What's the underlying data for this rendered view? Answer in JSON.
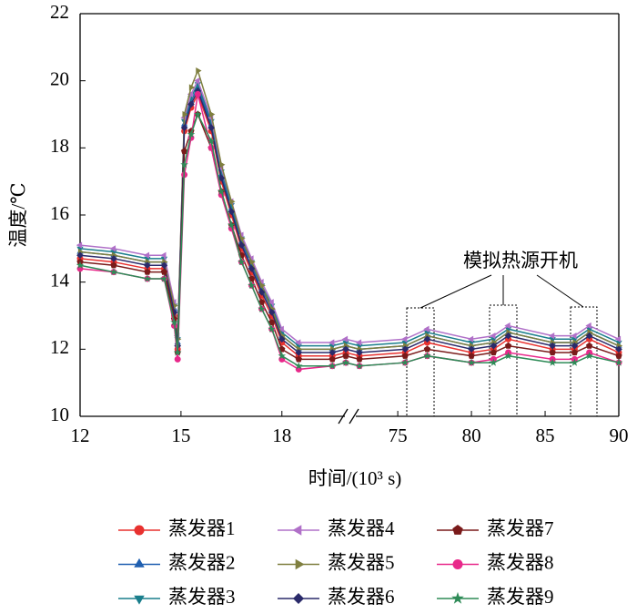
{
  "chart_data": {
    "type": "line",
    "ylabel": "温度/℃",
    "xlabel": "时间/(10³ s)",
    "annotation": "模拟热源开机",
    "xsegments": [
      [
        12,
        19.9
      ],
      [
        72.4,
        90
      ]
    ],
    "xticks": [
      12,
      15,
      18,
      75,
      80,
      85,
      90
    ],
    "ylim": [
      10,
      22
    ],
    "yticks": [
      10,
      12,
      14,
      16,
      18,
      20,
      22
    ],
    "x": [
      12,
      13,
      14,
      14.5,
      14.8,
      14.9,
      15.1,
      15.3,
      15.5,
      15.9,
      16.2,
      16.5,
      16.8,
      17.1,
      17.4,
      17.7,
      18,
      18.5,
      19.5,
      19.9,
      72.4,
      75.5,
      77,
      80,
      81.5,
      82.5,
      85.5,
      87,
      88,
      90
    ],
    "series": [
      {
        "name": "蒸发器1",
        "color": "#e8312f",
        "marker": "circle",
        "values": [
          14.7,
          14.6,
          14.4,
          14.4,
          13.0,
          12.0,
          18.5,
          19.2,
          19.6,
          18.5,
          17.0,
          16.0,
          15.0,
          14.3,
          13.6,
          13.0,
          12.2,
          11.8,
          11.8,
          11.9,
          11.8,
          11.9,
          12.2,
          11.9,
          12.0,
          12.3,
          12.0,
          12.0,
          12.3,
          11.9
        ]
      },
      {
        "name": "蒸发器2",
        "color": "#1f5fb0",
        "marker": "triangle-up",
        "values": [
          14.9,
          14.8,
          14.6,
          14.6,
          13.2,
          12.2,
          18.7,
          19.4,
          19.8,
          18.7,
          17.2,
          16.2,
          15.2,
          14.5,
          13.8,
          13.2,
          12.4,
          12.0,
          12.0,
          12.1,
          12.0,
          12.1,
          12.4,
          12.1,
          12.2,
          12.5,
          12.2,
          12.2,
          12.5,
          12.1
        ]
      },
      {
        "name": "蒸发器3",
        "color": "#1a7e8c",
        "marker": "triangle-down",
        "values": [
          15.0,
          14.9,
          14.7,
          14.7,
          13.3,
          12.3,
          18.8,
          19.5,
          19.9,
          18.8,
          17.3,
          16.3,
          15.3,
          14.6,
          13.9,
          13.3,
          12.5,
          12.1,
          12.1,
          12.2,
          12.1,
          12.2,
          12.5,
          12.2,
          12.3,
          12.6,
          12.3,
          12.3,
          12.6,
          12.2
        ]
      },
      {
        "name": "蒸发器4",
        "color": "#b070c8",
        "marker": "triangle-left",
        "values": [
          15.1,
          15.0,
          14.8,
          14.8,
          13.4,
          12.4,
          18.9,
          19.6,
          20.0,
          18.9,
          17.4,
          16.4,
          15.4,
          14.7,
          14.0,
          13.4,
          12.6,
          12.2,
          12.2,
          12.3,
          12.2,
          12.3,
          12.6,
          12.3,
          12.4,
          12.7,
          12.4,
          12.4,
          12.7,
          12.3
        ]
      },
      {
        "name": "蒸发器5",
        "color": "#7f7f3f",
        "marker": "triangle-right",
        "values": [
          14.9,
          14.8,
          14.6,
          14.6,
          13.3,
          12.3,
          19.0,
          19.8,
          20.3,
          19.0,
          17.5,
          16.4,
          15.3,
          14.6,
          13.9,
          13.2,
          12.4,
          12.0,
          12.0,
          12.1,
          12.0,
          12.1,
          12.4,
          12.1,
          12.2,
          12.5,
          12.2,
          12.2,
          12.5,
          12.1
        ]
      },
      {
        "name": "蒸发器6",
        "color": "#2a2a6a",
        "marker": "diamond",
        "values": [
          14.8,
          14.7,
          14.5,
          14.5,
          13.1,
          12.1,
          18.6,
          19.3,
          19.7,
          18.6,
          17.1,
          16.1,
          15.1,
          14.4,
          13.7,
          13.1,
          12.3,
          11.9,
          11.9,
          12.0,
          11.9,
          12.0,
          12.3,
          12.0,
          12.1,
          12.4,
          12.1,
          12.1,
          12.4,
          12.0
        ]
      },
      {
        "name": "蒸发器7",
        "color": "#7a1a1a",
        "marker": "pentagon",
        "values": [
          14.6,
          14.5,
          14.3,
          14.3,
          12.9,
          11.9,
          17.9,
          18.5,
          19.0,
          18.0,
          16.7,
          15.7,
          14.8,
          14.1,
          13.4,
          12.8,
          12.0,
          11.7,
          11.7,
          11.8,
          11.7,
          11.8,
          12.0,
          11.8,
          11.9,
          12.1,
          11.9,
          11.9,
          12.1,
          11.8
        ]
      },
      {
        "name": "蒸发器8",
        "color": "#e8288a",
        "marker": "circle",
        "values": [
          14.4,
          14.3,
          14.1,
          14.1,
          12.7,
          11.7,
          17.2,
          18.3,
          19.6,
          18.0,
          16.6,
          15.6,
          14.6,
          13.9,
          13.2,
          12.6,
          11.7,
          11.4,
          11.5,
          11.6,
          11.5,
          11.6,
          11.8,
          11.6,
          11.7,
          11.9,
          11.7,
          11.7,
          11.9,
          11.6
        ]
      },
      {
        "name": "蒸发器9",
        "color": "#2e8b57",
        "marker": "star",
        "values": [
          14.5,
          14.3,
          14.1,
          14.1,
          12.8,
          11.9,
          17.5,
          18.4,
          19.0,
          18.2,
          16.7,
          15.7,
          14.6,
          13.9,
          13.2,
          12.6,
          11.8,
          11.5,
          11.5,
          11.6,
          11.5,
          11.6,
          11.8,
          11.6,
          11.6,
          11.8,
          11.6,
          11.6,
          11.8,
          11.6
        ]
      }
    ]
  }
}
